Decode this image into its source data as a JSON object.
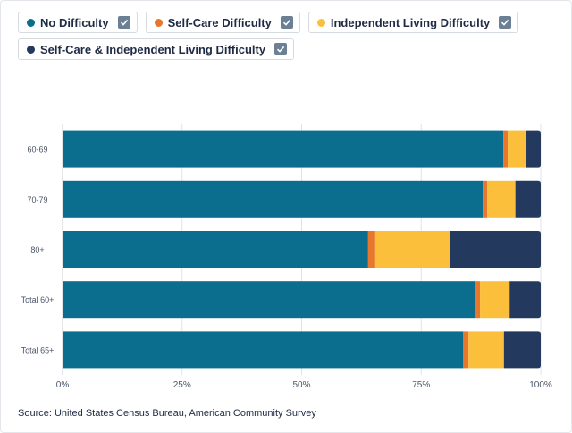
{
  "legend": [
    {
      "label": "No Difficulty",
      "color": "#0b6e8f"
    },
    {
      "label": "Self-Care Difficulty",
      "color": "#e8772e"
    },
    {
      "label": "Independent Living Difficulty",
      "color": "#fbbf3c"
    },
    {
      "label": "Self-Care & Independent Living Difficulty",
      "color": "#233a5e"
    }
  ],
  "source": "Source: United States Census Bureau, American Community Survey",
  "chart_data": {
    "type": "bar",
    "orientation": "horizontal",
    "stacked": true,
    "categories": [
      "60-69",
      "70-79",
      "80+",
      "Total 60+",
      "Total 65+"
    ],
    "series": [
      {
        "name": "No Difficulty",
        "color": "#0b6e8f",
        "values": [
          92.2,
          87.9,
          63.9,
          86.2,
          83.8
        ]
      },
      {
        "name": "Self-Care Difficulty",
        "color": "#e8772e",
        "values": [
          0.9,
          0.9,
          1.5,
          1.1,
          1.1
        ]
      },
      {
        "name": "Independent Living Difficulty",
        "color": "#fbbf3c",
        "values": [
          3.8,
          5.9,
          15.7,
          6.2,
          7.4
        ]
      },
      {
        "name": "Self-Care & Independent Living Difficulty",
        "color": "#233a5e",
        "values": [
          3.1,
          5.3,
          18.9,
          6.5,
          7.7
        ]
      }
    ],
    "x_ticks": [
      "0%",
      "25%",
      "50%",
      "75%",
      "100%"
    ],
    "xlim": [
      0,
      100
    ],
    "grid": true,
    "legend_position": "top-left"
  }
}
